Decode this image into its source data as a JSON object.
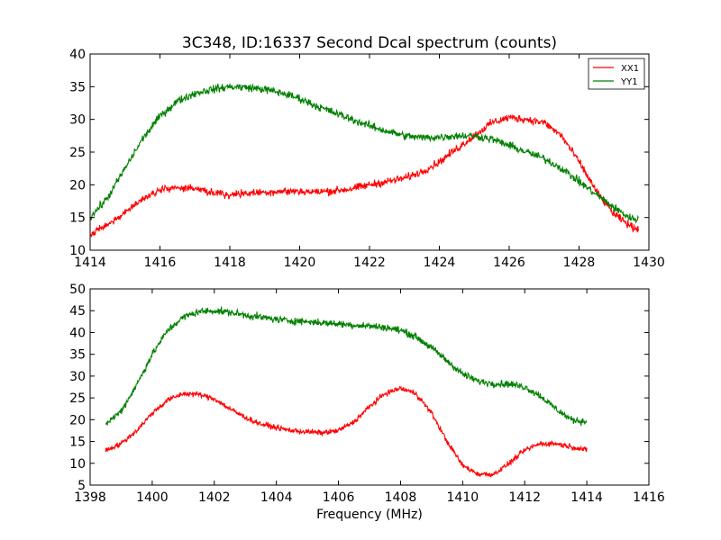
{
  "figure": {
    "title": "3C348, ID:16337 Second Dcal spectrum (counts)"
  },
  "chart_data": [
    {
      "type": "line",
      "title": "3C348, ID:16337 Second Dcal spectrum (counts)",
      "xlabel": "",
      "ylabel": "",
      "xlim": [
        1414,
        1430
      ],
      "ylim": [
        10,
        40
      ],
      "xticks": [
        "1414",
        "1416",
        "1418",
        "1420",
        "1422",
        "1424",
        "1426",
        "1428",
        "1430"
      ],
      "yticks": [
        "10",
        "15",
        "20",
        "25",
        "30",
        "35",
        "40"
      ],
      "legend": {
        "placement": "top-right",
        "entries": [
          "XX1",
          "YY1"
        ]
      },
      "grid": false,
      "noise_amplitude": [
        0.9,
        0.9
      ],
      "series": [
        {
          "name": "XX1",
          "color": "#ff0000",
          "x": [
            1414.0,
            1414.5,
            1415.0,
            1415.5,
            1416.0,
            1416.5,
            1417.0,
            1417.5,
            1418.0,
            1418.5,
            1419.0,
            1419.5,
            1420.0,
            1420.5,
            1421.0,
            1421.5,
            1422.0,
            1422.5,
            1423.0,
            1423.5,
            1424.0,
            1424.5,
            1425.0,
            1425.5,
            1426.0,
            1426.5,
            1427.0,
            1427.5,
            1428.0,
            1428.5,
            1429.0,
            1429.5,
            1429.7
          ],
          "y": [
            12.5,
            13.8,
            15.8,
            17.8,
            19.2,
            19.6,
            19.3,
            18.8,
            18.5,
            18.7,
            18.9,
            19.0,
            19.0,
            18.9,
            19.1,
            19.4,
            20.0,
            20.5,
            21.0,
            22.0,
            23.5,
            25.5,
            27.5,
            29.5,
            30.3,
            30.0,
            29.5,
            27.5,
            23.5,
            19.0,
            15.5,
            13.6,
            13.2
          ]
        },
        {
          "name": "YY1",
          "color": "#008000",
          "x": [
            1414.0,
            1414.5,
            1415.0,
            1415.5,
            1416.0,
            1416.5,
            1417.0,
            1417.5,
            1418.0,
            1418.5,
            1419.0,
            1419.5,
            1420.0,
            1420.5,
            1421.0,
            1421.5,
            1422.0,
            1422.5,
            1423.0,
            1423.5,
            1424.0,
            1424.5,
            1425.0,
            1425.5,
            1426.0,
            1426.5,
            1427.0,
            1427.5,
            1428.0,
            1428.5,
            1429.0,
            1429.5,
            1429.7
          ],
          "y": [
            15.0,
            18.0,
            22.5,
            27.0,
            30.5,
            32.8,
            34.0,
            34.6,
            35.0,
            34.9,
            34.6,
            34.0,
            33.2,
            32.0,
            31.0,
            30.0,
            29.0,
            28.2,
            27.5,
            27.2,
            27.3,
            27.5,
            27.5,
            27.0,
            26.0,
            25.0,
            24.0,
            22.5,
            20.5,
            18.5,
            16.5,
            14.8,
            14.8
          ]
        }
      ]
    },
    {
      "type": "line",
      "title": "",
      "xlabel": "Frequency (MHz)",
      "ylabel": "",
      "xlim": [
        1398,
        1416
      ],
      "ylim": [
        5,
        50
      ],
      "xticks": [
        "1398",
        "1400",
        "1402",
        "1404",
        "1406",
        "1408",
        "1410",
        "1412",
        "1414",
        "1416"
      ],
      "yticks": [
        "5",
        "10",
        "15",
        "20",
        "25",
        "30",
        "35",
        "40",
        "45",
        "50"
      ],
      "grid": false,
      "noise_amplitude": [
        0.9,
        1.2
      ],
      "series": [
        {
          "color": "#ff0000",
          "x": [
            1398.5,
            1399.0,
            1399.5,
            1400.0,
            1400.5,
            1401.0,
            1401.5,
            1402.0,
            1402.5,
            1403.0,
            1403.5,
            1404.0,
            1404.5,
            1405.0,
            1405.5,
            1406.0,
            1406.5,
            1407.0,
            1407.5,
            1408.0,
            1408.5,
            1409.0,
            1409.5,
            1410.0,
            1410.5,
            1411.0,
            1411.5,
            1412.0,
            1412.5,
            1413.0,
            1413.5,
            1414.0
          ],
          "y": [
            13.0,
            14.5,
            17.5,
            21.5,
            24.5,
            26.0,
            25.8,
            24.8,
            22.5,
            20.5,
            19.0,
            18.2,
            17.5,
            17.2,
            17.0,
            17.5,
            19.5,
            23.0,
            26.0,
            27.2,
            26.0,
            21.5,
            15.0,
            9.5,
            7.5,
            7.5,
            10.0,
            13.0,
            14.5,
            14.5,
            13.8,
            13.0
          ]
        },
        {
          "color": "#008000",
          "x": [
            1398.5,
            1399.0,
            1399.5,
            1400.0,
            1400.5,
            1401.0,
            1401.5,
            1402.0,
            1402.5,
            1403.0,
            1403.5,
            1404.0,
            1404.5,
            1405.0,
            1405.5,
            1406.0,
            1406.5,
            1407.0,
            1407.5,
            1408.0,
            1408.5,
            1409.0,
            1409.5,
            1410.0,
            1410.5,
            1411.0,
            1411.5,
            1412.0,
            1412.5,
            1413.0,
            1413.5,
            1414.0
          ],
          "y": [
            19.0,
            22.0,
            28.0,
            35.0,
            40.5,
            43.5,
            44.8,
            45.0,
            44.6,
            44.0,
            43.5,
            43.0,
            42.7,
            42.5,
            42.2,
            42.0,
            41.7,
            41.5,
            41.2,
            40.5,
            39.0,
            36.5,
            33.5,
            30.5,
            28.8,
            28.3,
            28.2,
            27.5,
            25.5,
            22.5,
            20.0,
            19.5
          ]
        }
      ]
    }
  ]
}
